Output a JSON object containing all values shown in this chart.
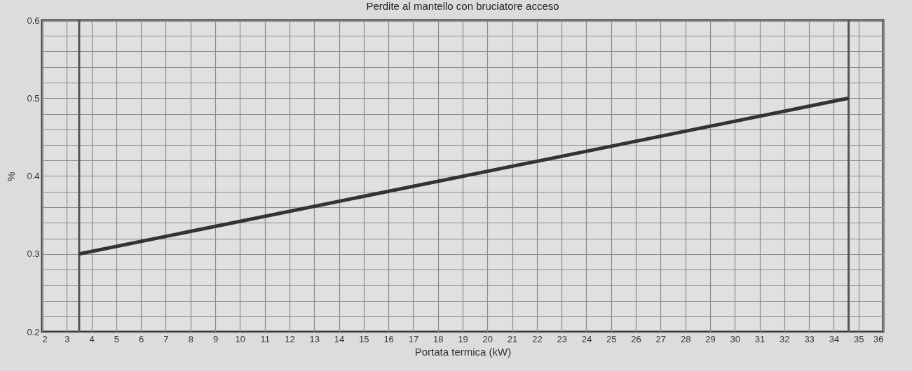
{
  "chart_data": {
    "type": "line",
    "title": "Perdite al mantello con bruciatore acceso",
    "xlabel": "Portata termica (kW)",
    "ylabel": "%",
    "x": [
      3.5,
      34.6
    ],
    "series": [
      {
        "color": "#333333",
        "values": [
          0.3,
          0.5
        ]
      }
    ],
    "xlim": [
      2,
      36
    ],
    "xticks": [
      2,
      3,
      4,
      5,
      6,
      7,
      8,
      9,
      10,
      11,
      12,
      13,
      14,
      15,
      16,
      17,
      18,
      19,
      20,
      21,
      22,
      23,
      24,
      25,
      26,
      27,
      28,
      29,
      30,
      31,
      32,
      33,
      34,
      35,
      36
    ],
    "ylim": [
      0.2,
      0.6
    ],
    "yticks": [
      0.2,
      {
        "value": 0.22,
        "label": null
      },
      {
        "value": 0.24,
        "label": null
      },
      {
        "value": 0.26,
        "label": null
      },
      {
        "value": 0.28,
        "label": null
      },
      0.3,
      {
        "value": 0.32,
        "label": null
      },
      {
        "value": 0.34,
        "label": null
      },
      {
        "value": 0.36,
        "label": null
      },
      {
        "value": 0.38,
        "label": null
      },
      0.4,
      {
        "value": 0.42,
        "label": null
      },
      {
        "value": 0.44,
        "label": null
      },
      {
        "value": 0.46,
        "label": null
      },
      {
        "value": 0.48,
        "label": null
      },
      0.5,
      {
        "value": 0.52,
        "label": null
      },
      {
        "value": 0.54,
        "label": null
      },
      {
        "value": 0.56,
        "label": null
      },
      {
        "value": 0.58,
        "label": null
      },
      0.6
    ],
    "grid": true,
    "marker": "none",
    "line_style": "solid",
    "ref_lines": [
      {
        "axis": "x",
        "value": 3.5,
        "color": "#555555"
      },
      {
        "axis": "x",
        "value": 34.6,
        "color": "#555555"
      }
    ]
  }
}
